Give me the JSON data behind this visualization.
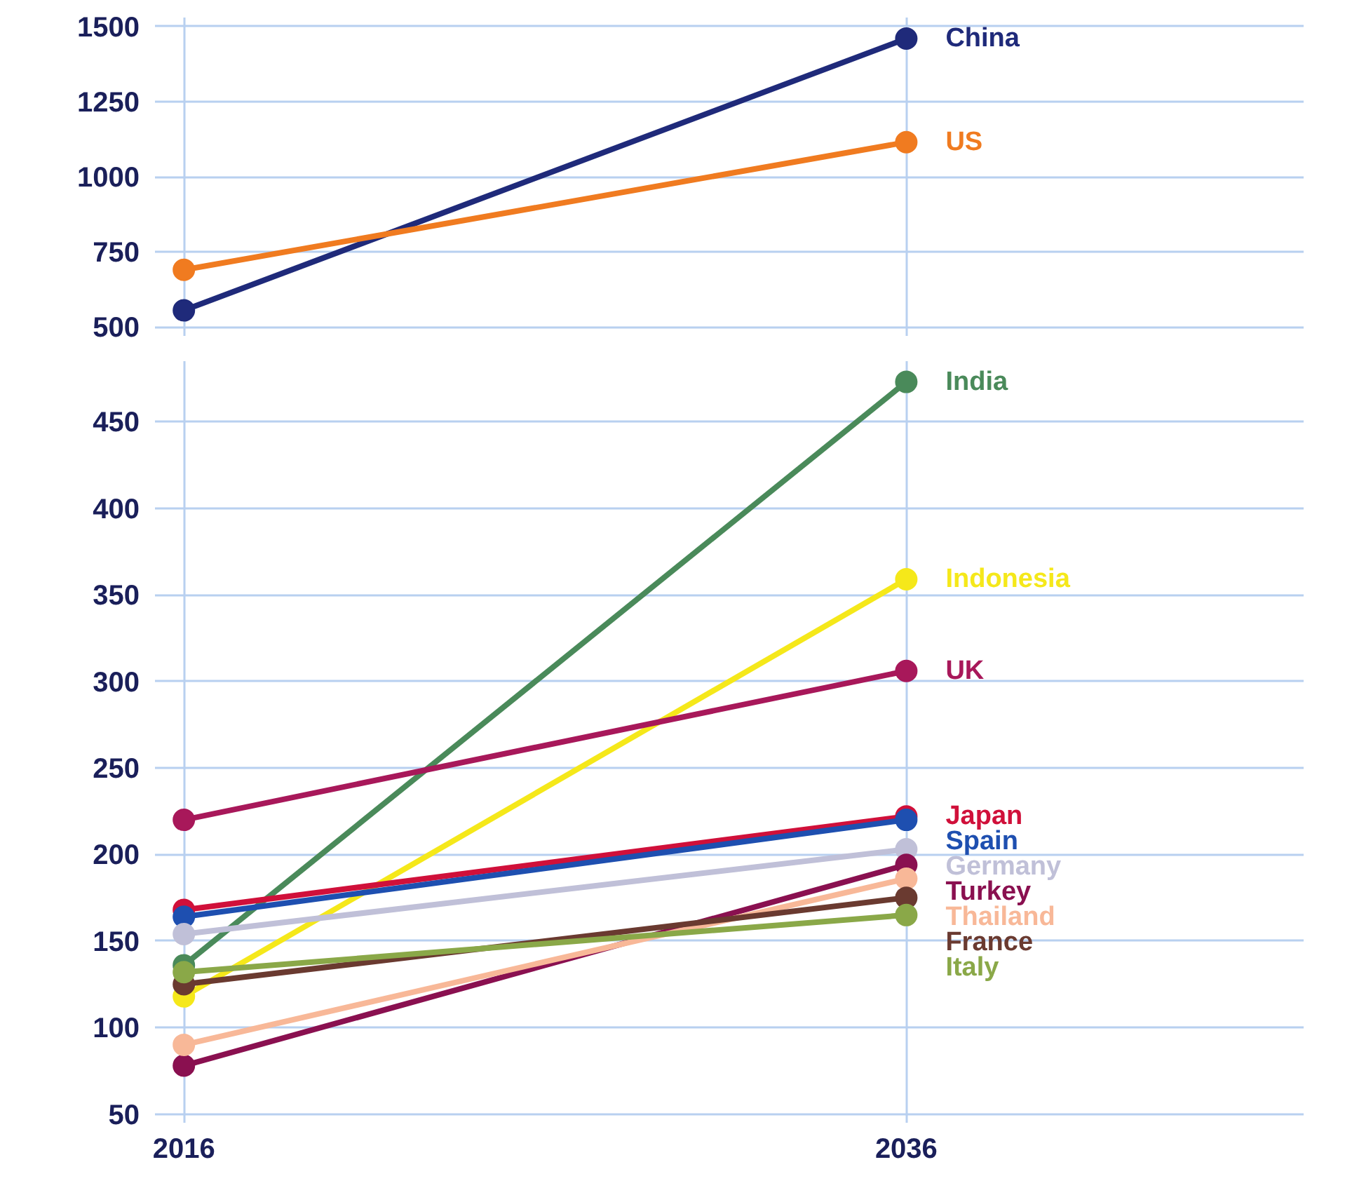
{
  "chart_data": [
    {
      "type": "line",
      "categories": [
        "2016",
        "2036"
      ],
      "ylim": [
        470,
        1530
      ],
      "yticks": [
        500,
        750,
        1000,
        1250,
        1500
      ],
      "grid": true,
      "marker": "circle",
      "tick_labels": "y",
      "series": [
        {
          "name": "China",
          "color": "#1f2a7a",
          "values": [
            555,
            1460
          ]
        },
        {
          "name": "US",
          "color": "#f07b20",
          "values": [
            690,
            1115
          ]
        }
      ]
    },
    {
      "type": "line",
      "categories": [
        "2016",
        "2036"
      ],
      "ylim": [
        45,
        485
      ],
      "yticks": [
        50,
        100,
        150,
        200,
        250,
        300,
        350,
        400,
        450
      ],
      "grid": true,
      "marker": "circle",
      "series": [
        {
          "name": "India",
          "color": "#4a8a5a",
          "values": [
            136,
            473
          ]
        },
        {
          "name": "Indonesia",
          "color": "#f5e81a",
          "values": [
            118,
            359
          ]
        },
        {
          "name": "UK",
          "color": "#a8185a",
          "values": [
            220,
            306
          ]
        },
        {
          "name": "Japan",
          "color": "#d0103a",
          "values": [
            168,
            222
          ]
        },
        {
          "name": "Spain",
          "color": "#1e4fb0",
          "values": [
            164,
            220
          ]
        },
        {
          "name": "Germany",
          "color": "#c0c0d8",
          "values": [
            154,
            203
          ]
        },
        {
          "name": "Turkey",
          "color": "#8a1050",
          "values": [
            78,
            194
          ]
        },
        {
          "name": "Thailand",
          "color": "#f8b898",
          "values": [
            90,
            186
          ]
        },
        {
          "name": "France",
          "color": "#6a3a30",
          "values": [
            125,
            175
          ]
        },
        {
          "name": "Italy",
          "color": "#8aa848",
          "values": [
            132,
            165
          ]
        }
      ]
    }
  ]
}
